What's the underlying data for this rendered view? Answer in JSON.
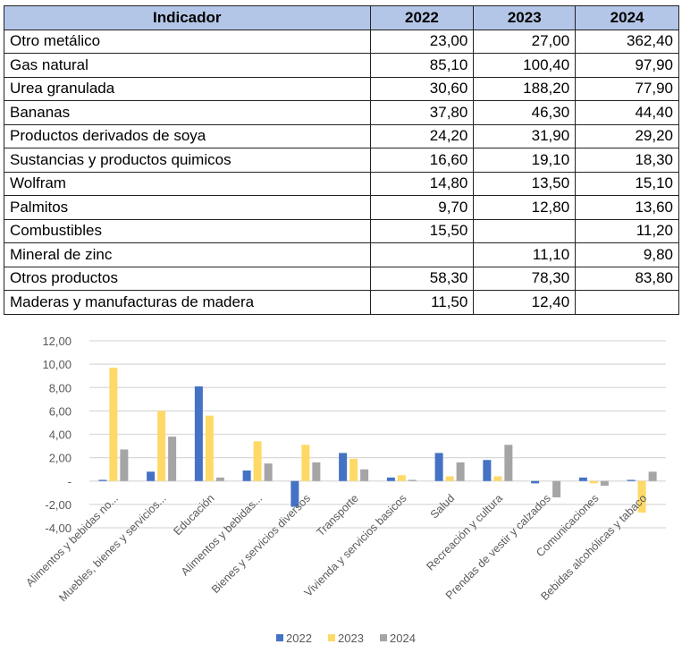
{
  "table": {
    "headers": [
      "Indicador",
      "2022",
      "2023",
      "2024"
    ],
    "rows": [
      [
        "Otro metálico",
        "23,00",
        "27,00",
        "362,40"
      ],
      [
        "Gas natural",
        "85,10",
        "100,40",
        "97,90"
      ],
      [
        "Urea granulada",
        "30,60",
        "188,20",
        "77,90"
      ],
      [
        "Bananas",
        "37,80",
        "46,30",
        "44,40"
      ],
      [
        "Productos derivados de soya",
        "24,20",
        "31,90",
        "29,20"
      ],
      [
        "Sustancias y productos quimicos",
        "16,60",
        "19,10",
        "18,30"
      ],
      [
        "Wolfram",
        "14,80",
        "13,50",
        "15,10"
      ],
      [
        "Palmitos",
        "9,70",
        "12,80",
        "13,60"
      ],
      [
        "Combustibles",
        "15,50",
        "",
        "11,20"
      ],
      [
        "Mineral de zinc",
        "",
        "11,10",
        "9,80"
      ],
      [
        "Otros productos",
        "58,30",
        "78,30",
        "83,80"
      ],
      [
        "Maderas y manufacturas de madera",
        "11,50",
        "12,40",
        ""
      ]
    ]
  },
  "chart_data": {
    "type": "bar",
    "title": "",
    "xlabel": "",
    "ylabel": "",
    "ylim": [
      -4,
      12
    ],
    "yticks": [
      12,
      10,
      8,
      6,
      4,
      2,
      0,
      -2,
      -4
    ],
    "ytick_labels": [
      "12,00",
      "10,00",
      "8,00",
      "6,00",
      "4,00",
      "2,00",
      "-",
      "-2,00",
      "-4,00"
    ],
    "grid": true,
    "legend_position": "bottom",
    "categories": [
      "Alimentos y bebidas no...",
      "Muebles, bienes y servicios...",
      "Educación",
      "Alimentos y bebidas...",
      "Bienes y servicios diversos",
      "Transporte",
      "Vivienda y servicios basicos",
      "Salud",
      "Recreación y cultura",
      "Prendas de vestir y calzados",
      "Comunicaciones",
      "Bebidas alcohólicas y tabaco"
    ],
    "series": [
      {
        "name": "2022",
        "color": "#4472c4",
        "values": [
          0.1,
          0.8,
          8.1,
          0.9,
          -2.2,
          2.4,
          0.3,
          2.4,
          1.8,
          -0.2,
          0.3,
          0.1
        ]
      },
      {
        "name": "2023",
        "color": "#ffd966",
        "values": [
          9.7,
          6.0,
          5.6,
          3.4,
          3.1,
          1.9,
          0.5,
          0.4,
          0.4,
          0.0,
          -0.2,
          -2.7
        ]
      },
      {
        "name": "2024",
        "color": "#a5a5a5",
        "values": [
          2.7,
          3.8,
          0.3,
          1.5,
          1.6,
          1.0,
          0.1,
          1.6,
          3.1,
          -1.4,
          -0.4,
          0.8
        ]
      }
    ]
  },
  "colors": {
    "header_bg": "#b4c6e7",
    "gridline": "#d9d9d9"
  }
}
